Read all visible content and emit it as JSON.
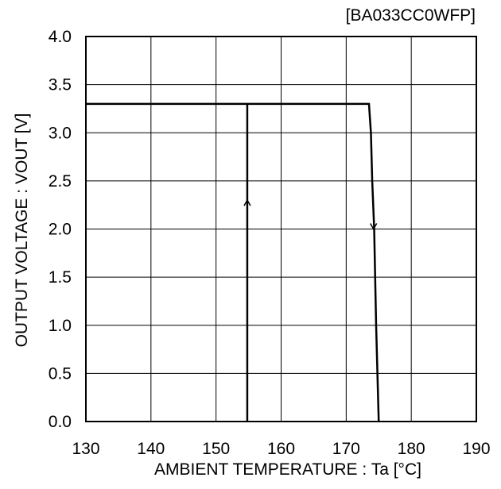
{
  "chart_data": {
    "type": "line",
    "tag": "[BA033CC0WFP]",
    "xlabel": "AMBIENT TEMPERATURE : Ta [°C]",
    "ylabel": "OUTPUT VOLTAGE : VOUT [V]",
    "xlim": [
      130,
      190
    ],
    "ylim": [
      0,
      4
    ],
    "x_ticks": [
      "130",
      "140",
      "150",
      "160",
      "170",
      "180",
      "190"
    ],
    "y_ticks": [
      "0.0",
      "0.5",
      "1.0",
      "1.5",
      "2.0",
      "2.5",
      "3.0",
      "3.5",
      "4.0"
    ],
    "grid": true,
    "series": [
      {
        "direction": "rising",
        "x": [
          130,
          173.5,
          173.8,
          174,
          174.3,
          174.6,
          175
        ],
        "y": [
          3.3,
          3.3,
          3.0,
          2.5,
          2.0,
          1.0,
          0.0
        ]
      },
      {
        "direction": "falling",
        "x": [
          154.8,
          154.8,
          154.8
        ],
        "y": [
          0.0,
          2.3,
          3.3
        ]
      }
    ],
    "arrows": [
      {
        "x": 154.8,
        "y": 2.3,
        "direction": "up"
      },
      {
        "x": 174.2,
        "y": 2.0,
        "direction": "down"
      }
    ],
    "line_color": "#000000",
    "grid_color": "#000000"
  }
}
